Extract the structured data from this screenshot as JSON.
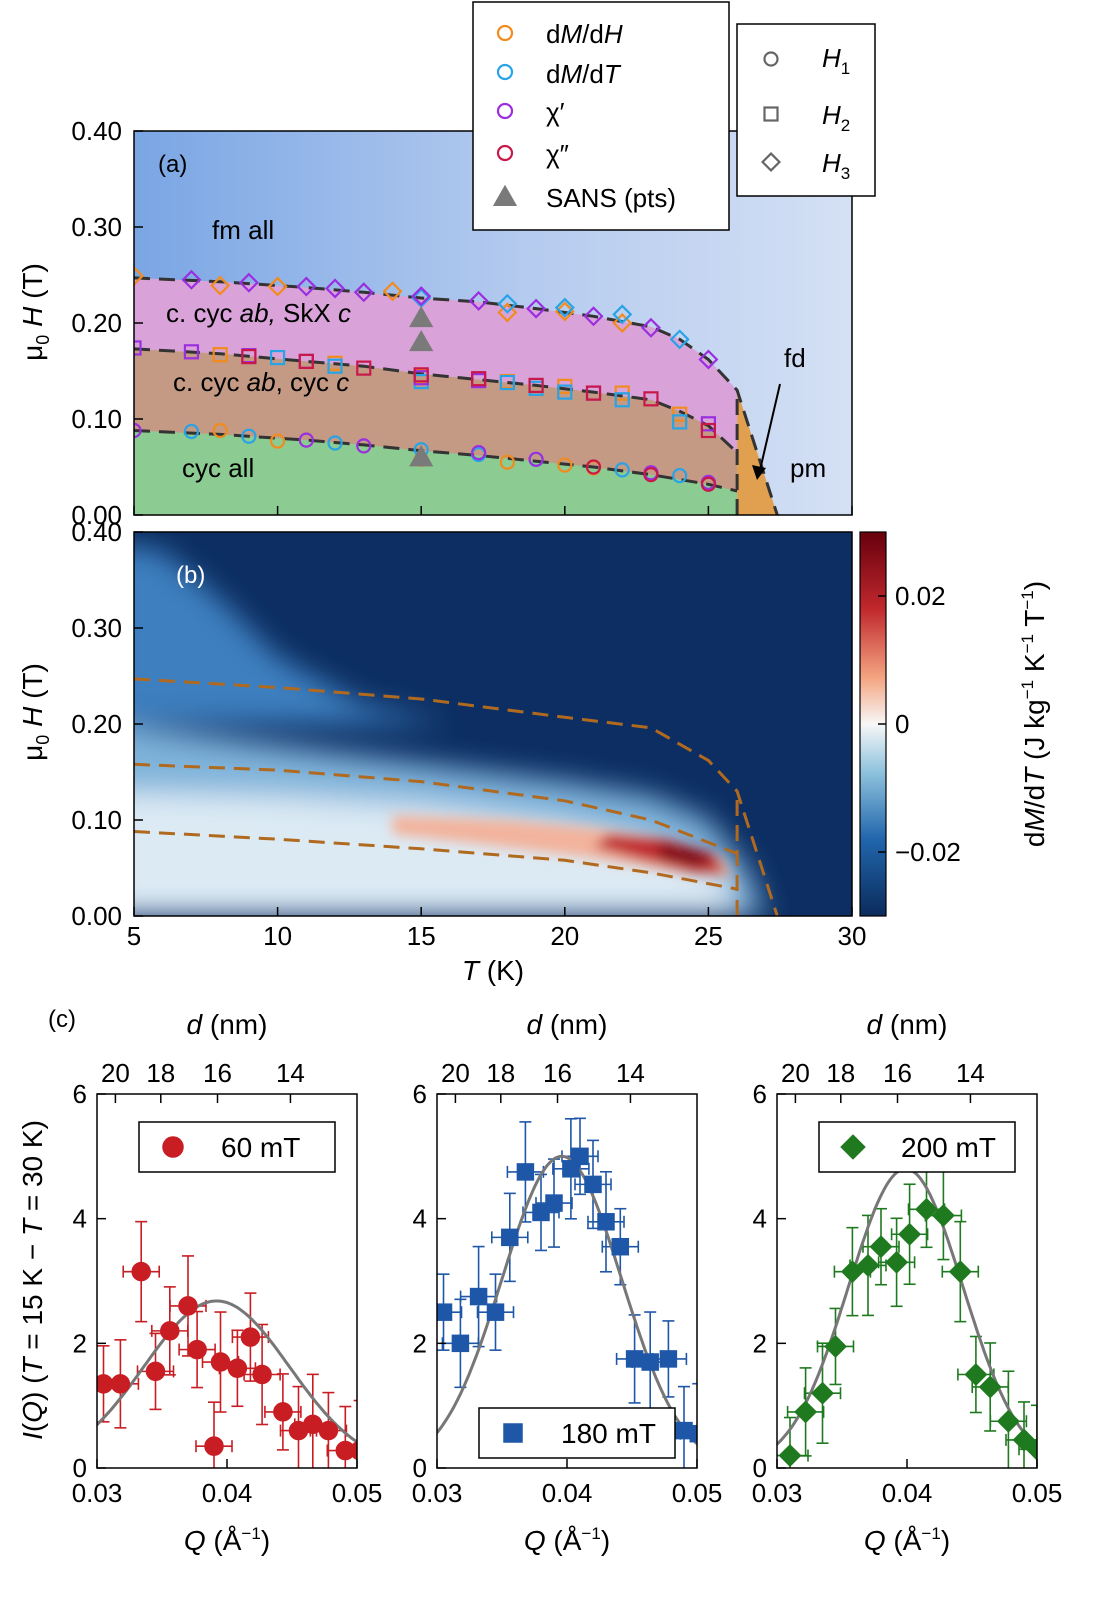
{
  "colors": {
    "orange": "#f28b1e",
    "blue": "#27a3e6",
    "violet": "#9a2ee0",
    "crimson": "#c8184a",
    "gray": "#7a7a7a",
    "fm_region": "#7fa8e6",
    "pm_region": "#cfdcf2",
    "skx_region": "#d9a3d9",
    "cyc_ab_c_region": "#c49a84",
    "cyc_all_region": "#8ccb91",
    "fd_region": "#e0a050",
    "boundary": "#333333",
    "map_boundary": "#b06a20",
    "red_series": "#c81e23",
    "blue_series": "#1f57a8",
    "green_series": "#1f7a1f",
    "fit_line": "#777777"
  },
  "legend_methods": [
    {
      "label": "dM/dH",
      "color_key": "orange"
    },
    {
      "label": "dM/dT",
      "color_key": "blue"
    },
    {
      "label": "χ′",
      "color_key": "violet"
    },
    {
      "label": "χ″",
      "color_key": "crimson"
    },
    {
      "label": "SANS (pts)",
      "color_key": "gray"
    }
  ],
  "legend_shapes": [
    {
      "label": "H1",
      "shape": "circle"
    },
    {
      "label": "H2",
      "shape": "square"
    },
    {
      "label": "H3",
      "shape": "diamond"
    }
  ],
  "chart_data": [
    {
      "panel": "(a)",
      "type": "scatter",
      "xlabel": "T (K)",
      "ylabel": "μ0 H (T)",
      "xlim": [
        5,
        30
      ],
      "ylim": [
        0,
        0.4
      ],
      "yticks": [
        "0.00",
        "0.10",
        "0.20",
        "0.30",
        "0.40"
      ],
      "region_labels": [
        "fm all",
        "c. cyc ab, SkX c",
        "c. cyc ab, cyc c",
        "cyc all",
        "fd",
        "pm"
      ],
      "boundaries": {
        "H3": {
          "x": [
            5,
            8,
            11,
            13,
            15,
            17,
            19,
            21,
            23,
            24,
            25
          ],
          "y": [
            0.247,
            0.243,
            0.237,
            0.232,
            0.226,
            0.222,
            0.215,
            0.207,
            0.196,
            0.183,
            0.162
          ]
        },
        "H2": {
          "x": [
            5,
            8,
            11,
            13,
            15,
            17,
            19,
            21,
            23,
            24,
            25
          ],
          "y": [
            0.173,
            0.168,
            0.16,
            0.155,
            0.147,
            0.141,
            0.135,
            0.128,
            0.12,
            0.108,
            0.093
          ]
        },
        "H1": {
          "x": [
            5,
            8,
            11,
            13,
            15,
            17,
            19,
            21,
            23,
            24,
            25
          ],
          "y": [
            0.088,
            0.084,
            0.078,
            0.073,
            0.067,
            0.062,
            0.056,
            0.05,
            0.042,
            0.037,
            0.032
          ]
        },
        "upper_phase_edge": {
          "x": [
            25,
            26,
            27.4
          ],
          "y": [
            0.162,
            0.13,
            0
          ]
        },
        "fd_edge": {
          "x": [
            26,
            26
          ],
          "y": [
            0,
            0.13
          ]
        }
      },
      "series": [
        {
          "name": "dM/dH H1",
          "color_key": "orange",
          "shape": "circle",
          "x": [
            8,
            10,
            15,
            18,
            20,
            21
          ],
          "y": [
            0.088,
            0.077,
            0.058,
            0.055,
            0.052,
            0.049
          ]
        },
        {
          "name": "dM/dT H1",
          "color_key": "blue",
          "shape": "circle",
          "x": [
            7,
            9,
            12,
            15,
            17,
            19,
            22,
            24
          ],
          "y": [
            0.087,
            0.082,
            0.075,
            0.068,
            0.063,
            0.058,
            0.047,
            0.041
          ]
        },
        {
          "name": "χ′ H1",
          "color_key": "violet",
          "shape": "circle",
          "x": [
            5,
            11,
            13,
            17,
            19,
            23,
            25
          ],
          "y": [
            0.088,
            0.078,
            0.072,
            0.065,
            0.058,
            0.044,
            0.034
          ]
        },
        {
          "name": "χ″ H1",
          "color_key": "crimson",
          "shape": "circle",
          "x": [
            21,
            23,
            25
          ],
          "y": [
            0.05,
            0.042,
            0.032
          ]
        },
        {
          "name": "dM/dH H2",
          "color_key": "orange",
          "shape": "square",
          "x": [
            8,
            12,
            15,
            18,
            20,
            22,
            24
          ],
          "y": [
            0.167,
            0.158,
            0.145,
            0.139,
            0.134,
            0.127,
            0.105
          ]
        },
        {
          "name": "dM/dT H2",
          "color_key": "blue",
          "shape": "square",
          "x": [
            10,
            12,
            15,
            18,
            19,
            20,
            22,
            24
          ],
          "y": [
            0.164,
            0.155,
            0.139,
            0.138,
            0.132,
            0.128,
            0.12,
            0.097
          ]
        },
        {
          "name": "χ′ H2",
          "color_key": "violet",
          "shape": "square",
          "x": [
            5,
            7,
            9,
            11,
            15,
            17,
            21,
            25
          ],
          "y": [
            0.174,
            0.17,
            0.166,
            0.16,
            0.143,
            0.14,
            0.127,
            0.095
          ]
        },
        {
          "name": "χ″ H2",
          "color_key": "crimson",
          "shape": "square",
          "x": [
            9,
            11,
            13,
            15,
            17,
            19,
            21,
            23,
            25
          ],
          "y": [
            0.165,
            0.16,
            0.153,
            0.146,
            0.142,
            0.135,
            0.127,
            0.121,
            0.088
          ]
        },
        {
          "name": "dM/dH H3",
          "color_key": "orange",
          "shape": "diamond",
          "x": [
            5,
            8,
            10,
            14,
            18,
            20,
            22
          ],
          "y": [
            0.249,
            0.239,
            0.238,
            0.233,
            0.211,
            0.212,
            0.2
          ]
        },
        {
          "name": "dM/dT H3",
          "color_key": "blue",
          "shape": "diamond",
          "x": [
            15,
            18,
            20,
            22,
            24
          ],
          "y": [
            0.226,
            0.22,
            0.216,
            0.209,
            0.183
          ]
        },
        {
          "name": "χ′ H3",
          "color_key": "violet",
          "shape": "diamond",
          "x": [
            7,
            9,
            11,
            12,
            13,
            15,
            17,
            19,
            21,
            23,
            25
          ],
          "y": [
            0.245,
            0.242,
            0.238,
            0.236,
            0.232,
            0.228,
            0.223,
            0.215,
            0.207,
            0.195,
            0.162
          ]
        },
        {
          "name": "SANS (pts)",
          "color_key": "gray",
          "shape": "triangle",
          "x": [
            15,
            15,
            15
          ],
          "y": [
            0.06,
            0.18,
            0.205
          ]
        }
      ]
    },
    {
      "panel": "(b)",
      "type": "heatmap",
      "xlabel": "T (K)",
      "ylabel": "μ0 H (T)",
      "xlim": [
        5,
        30
      ],
      "ylim": [
        0,
        0.4
      ],
      "xticks": [
        5,
        10,
        15,
        20,
        25,
        30
      ],
      "yticks": [
        "0.00",
        "0.10",
        "0.20",
        "0.30",
        "0.40"
      ],
      "colorbar_label": "dM/dT (J kg−1 K−1 T−1)",
      "colorbar_range": [
        -0.03,
        0.03
      ],
      "colorbar_ticks": [
        "0.02",
        "0",
        "−0.02"
      ],
      "colorbar_tick_values": [
        0.02,
        0,
        -0.02
      ],
      "features": [
        {
          "T": 24,
          "H": 0.066,
          "value": 0.028,
          "description": "peak"
        },
        {
          "T": 20,
          "H": 0.09,
          "value": 0.008,
          "description": "ridge"
        },
        {
          "T": 10,
          "H": 0.12,
          "value": -0.002,
          "description": "low-T plateau"
        }
      ],
      "boundaries": {
        "H3": {
          "x": [
            5,
            10,
            15,
            20,
            23,
            25,
            26,
            27.4
          ],
          "y": [
            0.247,
            0.238,
            0.226,
            0.207,
            0.196,
            0.162,
            0.13,
            0
          ]
        },
        "H2": {
          "x": [
            5,
            10,
            15,
            20,
            23,
            26
          ],
          "y": [
            0.158,
            0.152,
            0.14,
            0.12,
            0.1,
            0.065
          ]
        },
        "H1": {
          "x": [
            5,
            10,
            15,
            20,
            23,
            26
          ],
          "y": [
            0.088,
            0.08,
            0.07,
            0.058,
            0.045,
            0.028
          ]
        },
        "vertical": {
          "x": [
            26,
            26
          ],
          "y": [
            0,
            0.13
          ]
        }
      }
    },
    {
      "panel": "(c)",
      "type": "scatter",
      "xlabel": "Q (Å−1)",
      "ylabel": "I(Q) (T = 15 K − T = 30 K)",
      "top_axis_label": "d (nm)",
      "top_ticks": [
        20,
        18,
        16,
        14
      ],
      "xlim": [
        0.03,
        0.05
      ],
      "ylim": [
        0,
        6
      ],
      "xticks": [
        "0.03",
        "0.04",
        "0.05"
      ],
      "yticks": [
        "0",
        "2",
        "4",
        "6"
      ],
      "subplots": [
        {
          "legend": "60 mT",
          "color_key": "red_series",
          "marker": "circle",
          "legend_pos": "top",
          "x": [
            0.0305,
            0.0318,
            0.0334,
            0.0345,
            0.0356,
            0.037,
            0.0377,
            0.039,
            0.0395,
            0.0408,
            0.0418,
            0.0427,
            0.0443,
            0.0455,
            0.0466,
            0.0478,
            0.0491,
            0.0502
          ],
          "y": [
            1.35,
            1.35,
            3.15,
            1.55,
            2.2,
            2.6,
            1.9,
            0.35,
            1.7,
            1.6,
            2.1,
            1.5,
            0.9,
            0.6,
            0.7,
            0.6,
            0.28,
            0.28
          ],
          "fit": {
            "center": 0.0392,
            "amplitude": 2.68,
            "sigma": 0.0056
          }
        },
        {
          "legend": "180 mT",
          "color_key": "blue_series",
          "marker": "square",
          "legend_pos": "bottom",
          "x": [
            0.0305,
            0.0318,
            0.0332,
            0.0345,
            0.0356,
            0.0368,
            0.038,
            0.039,
            0.0403,
            0.041,
            0.042,
            0.043,
            0.0441,
            0.0452,
            0.0464,
            0.0478,
            0.049,
            0.0501
          ],
          "y": [
            2.5,
            2.0,
            2.75,
            2.5,
            3.7,
            4.75,
            4.1,
            4.25,
            4.8,
            5.0,
            4.55,
            3.95,
            3.55,
            1.75,
            1.7,
            1.75,
            0.6,
            0.55
          ],
          "fit": {
            "center": 0.0396,
            "amplitude": 5.0,
            "sigma": 0.0046
          }
        },
        {
          "legend": "200 mT",
          "color_key": "green_series",
          "marker": "diamond",
          "legend_pos": "top",
          "x": [
            0.031,
            0.0322,
            0.0335,
            0.0345,
            0.0358,
            0.037,
            0.038,
            0.0392,
            0.0402,
            0.0415,
            0.0428,
            0.0441,
            0.0453,
            0.0464,
            0.0478,
            0.049,
            0.05
          ],
          "y": [
            0.2,
            0.9,
            1.2,
            1.95,
            3.15,
            3.25,
            3.55,
            3.3,
            3.75,
            4.15,
            4.05,
            3.15,
            1.5,
            1.3,
            0.75,
            0.45,
            0.3
          ],
          "fit": {
            "center": 0.0399,
            "amplitude": 4.8,
            "sigma": 0.0044
          }
        }
      ]
    }
  ]
}
